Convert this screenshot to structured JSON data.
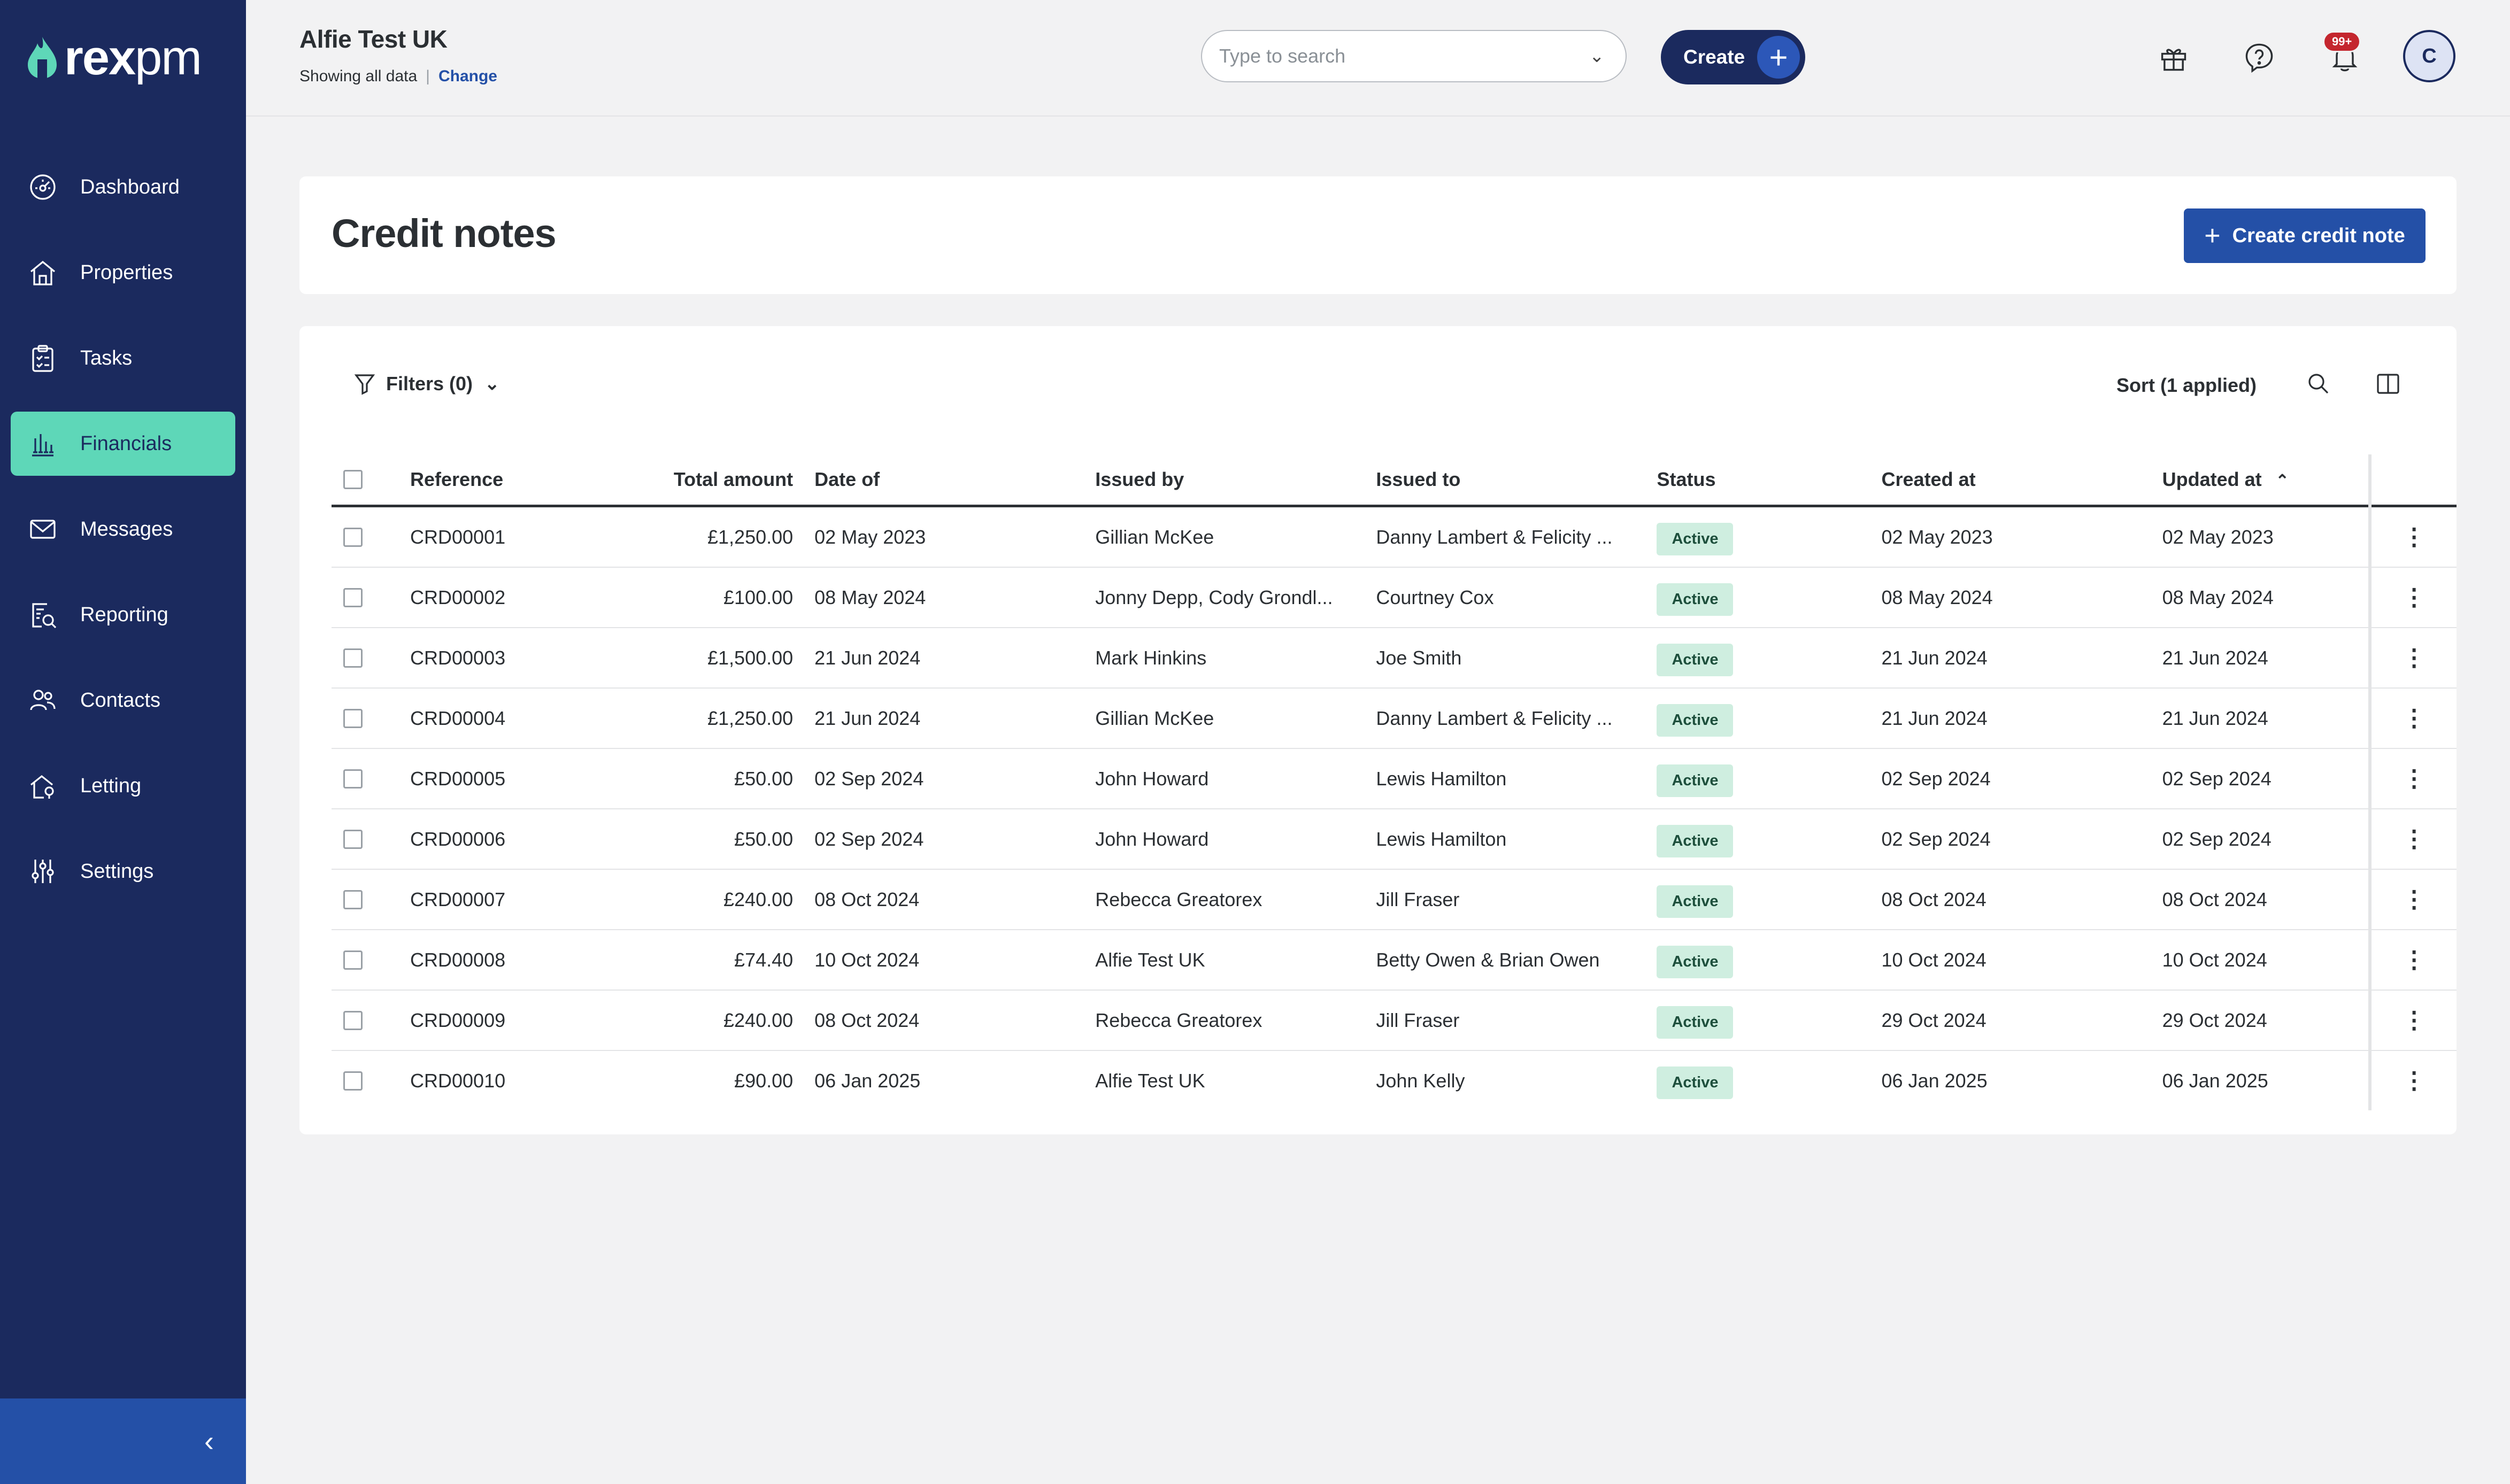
{
  "brand": {
    "logo_text_bold": "rex",
    "logo_text_light": "pm"
  },
  "sidebar": {
    "items": [
      {
        "label": "Dashboard",
        "icon": "dashboard-icon"
      },
      {
        "label": "Properties",
        "icon": "home-icon"
      },
      {
        "label": "Tasks",
        "icon": "clipboard-icon"
      },
      {
        "label": "Financials",
        "icon": "bank-icon",
        "active": true
      },
      {
        "label": "Messages",
        "icon": "mail-icon"
      },
      {
        "label": "Reporting",
        "icon": "report-search-icon"
      },
      {
        "label": "Contacts",
        "icon": "users-icon"
      },
      {
        "label": "Letting",
        "icon": "letting-icon"
      },
      {
        "label": "Settings",
        "icon": "sliders-icon"
      }
    ],
    "collapse_glyph": "‹"
  },
  "topbar": {
    "account_name": "Alfie Test UK",
    "scope_text": "Showing all data",
    "separator": "|",
    "change_label": "Change",
    "search_placeholder": "Type to search",
    "create_label": "Create",
    "notifications_badge": "99+",
    "avatar_initial": "C"
  },
  "page": {
    "title": "Credit notes",
    "create_button_label": "Create credit note"
  },
  "toolbar": {
    "filters_label": "Filters (0)",
    "sort_label": "Sort (1 applied)"
  },
  "table": {
    "columns": [
      "Reference",
      "Total amount",
      "Date of",
      "Issued by",
      "Issued to",
      "Status",
      "Created at",
      "Updated at"
    ],
    "rows": [
      {
        "ref": "CRD00001",
        "amount": "£1,250.00",
        "date_of": "02 May 2023",
        "issued_by": "Gillian McKee",
        "issued_to": "Danny Lambert & Felicity ...",
        "status": "Active",
        "created": "02 May 2023",
        "updated": "02 May 2023"
      },
      {
        "ref": "CRD00002",
        "amount": "£100.00",
        "date_of": "08 May 2024",
        "issued_by": "Jonny Depp, Cody Grondl...",
        "issued_to": "Courtney Cox",
        "status": "Active",
        "created": "08 May 2024",
        "updated": "08 May 2024"
      },
      {
        "ref": "CRD00003",
        "amount": "£1,500.00",
        "date_of": "21 Jun 2024",
        "issued_by": "Mark Hinkins",
        "issued_to": "Joe Smith",
        "status": "Active",
        "created": "21 Jun 2024",
        "updated": "21 Jun 2024"
      },
      {
        "ref": "CRD00004",
        "amount": "£1,250.00",
        "date_of": "21 Jun 2024",
        "issued_by": "Gillian McKee",
        "issued_to": "Danny Lambert & Felicity ...",
        "status": "Active",
        "created": "21 Jun 2024",
        "updated": "21 Jun 2024"
      },
      {
        "ref": "CRD00005",
        "amount": "£50.00",
        "date_of": "02 Sep 2024",
        "issued_by": "John Howard",
        "issued_to": "Lewis Hamilton",
        "status": "Active",
        "created": "02 Sep 2024",
        "updated": "02 Sep 2024"
      },
      {
        "ref": "CRD00006",
        "amount": "£50.00",
        "date_of": "02 Sep 2024",
        "issued_by": "John Howard",
        "issued_to": "Lewis Hamilton",
        "status": "Active",
        "created": "02 Sep 2024",
        "updated": "02 Sep 2024"
      },
      {
        "ref": "CRD00007",
        "amount": "£240.00",
        "date_of": "08 Oct 2024",
        "issued_by": "Rebecca Greatorex",
        "issued_to": "Jill Fraser",
        "status": "Active",
        "created": "08 Oct 2024",
        "updated": "08 Oct 2024"
      },
      {
        "ref": "CRD00008",
        "amount": "£74.40",
        "date_of": "10 Oct 2024",
        "issued_by": "Alfie Test UK",
        "issued_to": "Betty Owen & Brian Owen",
        "status": "Active",
        "created": "10 Oct 2024",
        "updated": "10 Oct 2024"
      },
      {
        "ref": "CRD00009",
        "amount": "£240.00",
        "date_of": "08 Oct 2024",
        "issued_by": "Rebecca Greatorex",
        "issued_to": "Jill Fraser",
        "status": "Active",
        "created": "29 Oct 2024",
        "updated": "29 Oct 2024"
      },
      {
        "ref": "CRD00010",
        "amount": "£90.00",
        "date_of": "06 Jan 2025",
        "issued_by": "Alfie Test UK",
        "issued_to": "John Kelly",
        "status": "Active",
        "created": "06 Jan 2025",
        "updated": "06 Jan 2025"
      }
    ]
  },
  "colors": {
    "sidebar_bg": "#1b2a5e",
    "active_nav": "#5ed7b8",
    "primary": "#2450a7",
    "status_bg": "#cfeee0"
  }
}
